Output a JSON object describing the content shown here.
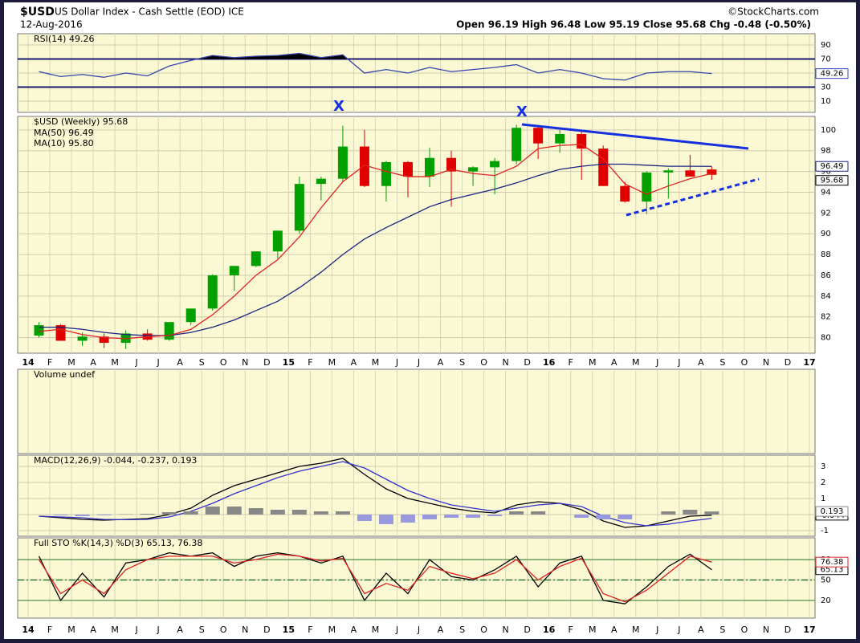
{
  "header": {
    "symbol": "$USD",
    "name": "US Dollar Index - Cash Settle (EOD) ICE",
    "date": "12-Aug-2016",
    "source": "©StockCharts.com",
    "quote": "Open 96.19  High 96.48  Low 95.19  Close 95.68  Chg -0.48 (-0.50%)"
  },
  "annotations": [
    "X",
    "X"
  ],
  "chart_data": [
    {
      "type": "line",
      "title": "RSI(14) 49.26",
      "ylim": [
        -6,
        106
      ],
      "yticks": [
        10,
        30,
        50,
        70,
        90
      ],
      "levels": [
        30,
        70
      ],
      "fill_above_top_level": true,
      "series": [
        {
          "name": "RSI",
          "color": "#3344aa",
          "last_box": true,
          "values": [
            52,
            45,
            48,
            44,
            50,
            46,
            60,
            68,
            75,
            72,
            74,
            75,
            78,
            72,
            76,
            50,
            55,
            50,
            58,
            52,
            55,
            58,
            62,
            50,
            55,
            50,
            42,
            40,
            50,
            52,
            52,
            49.26,
            null,
            null,
            null,
            null,
            null
          ]
        }
      ]
    },
    {
      "type": "candlestick",
      "title": "$USD (Weekly) 95.68",
      "ylim": [
        78.5,
        101.3
      ],
      "yticks": [
        80,
        82,
        84,
        86,
        88,
        90,
        92,
        94,
        96,
        98,
        100
      ],
      "grid": true,
      "categories": [
        "14",
        "F",
        "M",
        "A",
        "M",
        "J",
        "J",
        "A",
        "S",
        "O",
        "N",
        "D",
        "15",
        "F",
        "M",
        "A",
        "M",
        "J",
        "J",
        "A",
        "S",
        "O",
        "N",
        "D",
        "16",
        "F",
        "M",
        "A",
        "M",
        "J",
        "J",
        "A",
        "S",
        "O",
        "N",
        "D",
        "17"
      ],
      "open": [
        80.2,
        81.2,
        79.7,
        80.1,
        79.5,
        80.4,
        79.8,
        81.5,
        82.8,
        86.0,
        86.9,
        88.3,
        90.3,
        94.8,
        95.3,
        98.4,
        94.6,
        96.9,
        95.5,
        97.3,
        96.0,
        96.4,
        97.0,
        100.2,
        98.7,
        99.6,
        98.2,
        94.6,
        93.1,
        95.9,
        96.1,
        96.19,
        null,
        null,
        null,
        null,
        null
      ],
      "high": [
        81.5,
        81.3,
        80.5,
        80.4,
        80.7,
        80.8,
        81.5,
        82.8,
        86.1,
        86.9,
        88.3,
        90.3,
        95.5,
        95.5,
        100.4,
        100.0,
        97.0,
        97.0,
        98.3,
        98.0,
        96.5,
        97.3,
        100.5,
        100.3,
        100.0,
        99.8,
        98.5,
        95.0,
        96.0,
        96.3,
        97.6,
        96.48,
        null,
        null,
        null,
        null,
        null
      ],
      "low": [
        80.0,
        79.8,
        79.2,
        79.0,
        78.9,
        79.7,
        79.7,
        81.2,
        82.6,
        84.5,
        86.8,
        87.6,
        90.0,
        93.2,
        95.0,
        94.5,
        93.1,
        93.5,
        94.5,
        92.6,
        94.6,
        93.8,
        96.7,
        97.2,
        97.8,
        95.2,
        94.6,
        93.0,
        91.9,
        93.4,
        95.6,
        95.19,
        null,
        null,
        null,
        null,
        null
      ],
      "close": [
        81.2,
        79.7,
        80.1,
        79.5,
        80.4,
        79.8,
        81.5,
        82.8,
        86.0,
        86.9,
        88.3,
        90.3,
        94.8,
        95.3,
        98.4,
        94.6,
        96.9,
        95.5,
        97.3,
        96.0,
        96.4,
        97.0,
        100.2,
        98.7,
        99.6,
        98.2,
        94.6,
        93.1,
        95.9,
        96.1,
        95.5,
        95.68,
        null,
        null,
        null,
        null,
        null
      ],
      "up_color": "#00a000",
      "down_color": "#e00000",
      "series": [
        {
          "name": "MA(50) 96.49",
          "color": "#1a237e",
          "last_box": true,
          "values": [
            81,
            81,
            80.8,
            80.5,
            80.3,
            80.2,
            80.2,
            80.5,
            81,
            81.7,
            82.6,
            83.5,
            84.8,
            86.3,
            88.0,
            89.5,
            90.6,
            91.6,
            92.6,
            93.3,
            93.8,
            94.3,
            94.9,
            95.6,
            96.2,
            96.5,
            96.7,
            96.7,
            96.6,
            96.5,
            96.5,
            96.49,
            null,
            null,
            null,
            null,
            null
          ]
        },
        {
          "name": "MA(10) 95.80",
          "color": "#dd2222",
          "values": [
            80.6,
            80.8,
            80.3,
            80.0,
            79.9,
            80.1,
            80.2,
            80.8,
            82.2,
            84.0,
            86.0,
            87.5,
            89.7,
            92.5,
            95.0,
            96.6,
            96.0,
            95.5,
            95.5,
            96.2,
            95.8,
            95.6,
            96.5,
            98.2,
            98.5,
            98.6,
            97.2,
            94.8,
            93.8,
            94.6,
            95.3,
            95.8,
            null,
            null,
            null,
            null,
            null
          ]
        }
      ]
    },
    {
      "type": "bar",
      "title": "Volume undef"
    },
    {
      "type": "line",
      "title": "MACD(12,26,9) -0.044, -0.237, 0.193",
      "ylim": [
        -1.35,
        3.7
      ],
      "yticks": [
        -1,
        0,
        1,
        2,
        3
      ],
      "series": [
        {
          "name": "MACD",
          "color": "#000000",
          "last_box": true,
          "values": [
            -0.1,
            -0.2,
            -0.3,
            -0.35,
            -0.3,
            -0.25,
            0,
            0.4,
            1.2,
            1.8,
            2.2,
            2.6,
            3.0,
            3.2,
            3.5,
            2.5,
            1.6,
            1.0,
            0.7,
            0.4,
            0.2,
            0.1,
            0.6,
            0.8,
            0.7,
            0.3,
            -0.4,
            -0.8,
            -0.7,
            -0.4,
            -0.1,
            -0.044,
            null,
            null,
            null,
            null,
            null
          ]
        },
        {
          "name": "Signal",
          "color": "#3333cc",
          "values": [
            -0.1,
            -0.15,
            -0.2,
            -0.3,
            -0.32,
            -0.3,
            -0.15,
            0.2,
            0.7,
            1.3,
            1.8,
            2.3,
            2.7,
            3.0,
            3.3,
            2.9,
            2.2,
            1.5,
            1.0,
            0.6,
            0.4,
            0.2,
            0.4,
            0.6,
            0.7,
            0.5,
            -0.1,
            -0.5,
            -0.7,
            -0.6,
            -0.4,
            -0.237,
            null,
            null,
            null,
            null,
            null
          ]
        },
        {
          "name": "Histogram",
          "type": "bar",
          "color": "#888888",
          "negative_color": "#9999dd",
          "last_box": true,
          "values": [
            0,
            -0.05,
            -0.1,
            -0.05,
            0.02,
            0.05,
            0.15,
            0.2,
            0.5,
            0.5,
            0.4,
            0.3,
            0.3,
            0.2,
            0.2,
            -0.4,
            -0.6,
            -0.5,
            -0.3,
            -0.2,
            -0.2,
            -0.1,
            0.2,
            0.2,
            0,
            -0.2,
            -0.3,
            -0.3,
            0,
            0.2,
            0.3,
            0.193,
            null,
            null,
            null,
            null,
            null
          ]
        }
      ]
    },
    {
      "type": "line",
      "title": "Full STO %K(14,3) %D(3) 65.13, 76.38",
      "ylim": [
        -6,
        112
      ],
      "yticks": [
        20,
        50,
        80
      ],
      "levels": [
        20,
        80
      ],
      "midline": 50,
      "series": [
        {
          "name": "%K",
          "color": "#000000",
          "last_box": true,
          "values": [
            85,
            20,
            60,
            25,
            75,
            80,
            90,
            85,
            90,
            70,
            85,
            90,
            85,
            75,
            85,
            20,
            60,
            30,
            80,
            55,
            50,
            65,
            85,
            40,
            75,
            85,
            20,
            15,
            40,
            70,
            88,
            65.13,
            null,
            null,
            null,
            null,
            null
          ]
        },
        {
          "name": "%D",
          "color": "#dd2222",
          "last_box": true,
          "values": [
            80,
            30,
            50,
            30,
            65,
            80,
            85,
            85,
            85,
            75,
            80,
            88,
            85,
            78,
            82,
            30,
            45,
            35,
            70,
            60,
            52,
            60,
            80,
            50,
            70,
            82,
            30,
            18,
            35,
            60,
            85,
            76.38,
            null,
            null,
            null,
            null,
            null
          ]
        }
      ]
    }
  ]
}
